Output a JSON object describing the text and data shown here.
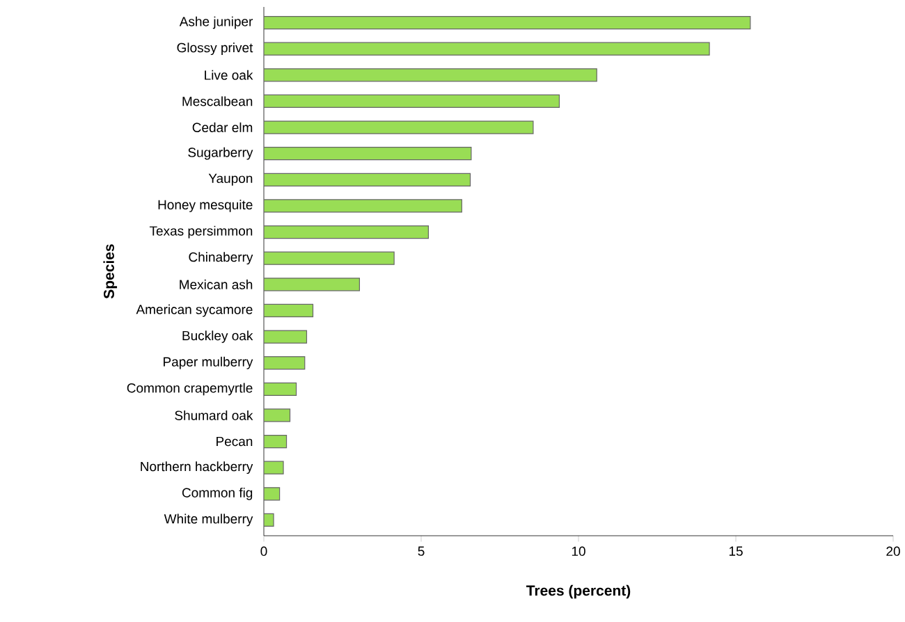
{
  "chart_data": {
    "type": "bar",
    "orientation": "horizontal",
    "xlabel": "Trees (percent)",
    "ylabel": "Species",
    "categories": [
      "Ashe juniper",
      "Glossy privet",
      "Live oak",
      "Mescalbean",
      "Cedar elm",
      "Sugarberry",
      "Yaupon",
      "Honey mesquite",
      "Texas persimmon",
      "Chinaberry",
      "Mexican ash",
      "American sycamore",
      "Buckley oak",
      "Paper mulberry",
      "Common crapemyrtle",
      "Shumard oak",
      "Pecan",
      "Northern hackberry",
      "Common fig",
      "White mulberry"
    ],
    "values": [
      15.46,
      14.16,
      10.58,
      9.39,
      8.56,
      6.59,
      6.56,
      6.29,
      5.23,
      4.14,
      3.04,
      1.56,
      1.36,
      1.3,
      1.03,
      0.83,
      0.72,
      0.62,
      0.5,
      0.31
    ],
    "color": "#99dd55",
    "xlim": [
      0,
      20
    ],
    "xticks": [
      0,
      5,
      10,
      15,
      20
    ]
  }
}
